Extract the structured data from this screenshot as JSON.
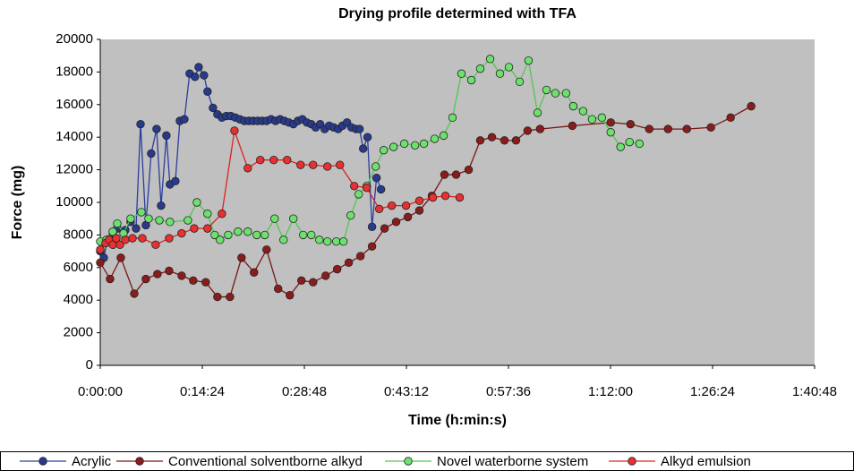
{
  "chart_data": {
    "type": "line",
    "title": "Drying profile determined with TFA",
    "x_label": "Time (h:min:s)",
    "y_label": "Force (mg)",
    "xlim": [
      0,
      6048
    ],
    "xticks": [
      {
        "value": 0,
        "label": "0:00:00"
      },
      {
        "value": 864,
        "label": "0:14:24"
      },
      {
        "value": 1728,
        "label": "0:28:48"
      },
      {
        "value": 2592,
        "label": "0:43:12"
      },
      {
        "value": 3456,
        "label": "0:57:36"
      },
      {
        "value": 4320,
        "label": "1:12:00"
      },
      {
        "value": 5184,
        "label": "1:26:24"
      },
      {
        "value": 6048,
        "label": "1:40:48"
      }
    ],
    "ylim": [
      0,
      20000
    ],
    "yticks": [
      0,
      2000,
      4000,
      6000,
      8000,
      10000,
      12000,
      14000,
      16000,
      18000,
      20000
    ],
    "grid": false,
    "legend": "bottom",
    "series": [
      {
        "name": "Acrylic",
        "color": "#2b3d9e",
        "marker_color": "#283a8c",
        "x": [
          0,
          30,
          61,
          106,
          144,
          212,
          257,
          303,
          341,
          386,
          431,
          477,
          515,
          560,
          590,
          636,
          674,
          712,
          757,
          802,
          833,
          878,
          908,
          954,
          992,
          1030,
          1067,
          1105,
          1143,
          1181,
          1219,
          1257,
          1294,
          1332,
          1370,
          1408,
          1446,
          1484,
          1522,
          1559,
          1597,
          1635,
          1673,
          1711,
          1749,
          1787,
          1824,
          1862,
          1900,
          1938,
          1976,
          2014,
          2051,
          2089,
          2127,
          2165,
          2195,
          2226,
          2263,
          2301,
          2339,
          2377
        ],
        "values": [
          7000,
          6600,
          7700,
          8000,
          8400,
          8300,
          8800,
          8400,
          14800,
          8600,
          13000,
          14500,
          9800,
          14100,
          11100,
          11300,
          15000,
          15100,
          17900,
          17700,
          18300,
          17800,
          16800,
          15800,
          15400,
          15200,
          15300,
          15300,
          15200,
          15100,
          15000,
          15000,
          15000,
          15000,
          15000,
          15000,
          15100,
          15000,
          15100,
          15000,
          14900,
          14800,
          15000,
          15100,
          14900,
          14800,
          14600,
          14800,
          14500,
          14700,
          14600,
          14500,
          14700,
          14900,
          14600,
          14500,
          14500,
          13300,
          14000,
          8500,
          11500,
          10800
        ]
      },
      {
        "name": "Conventional solventborne alkyd",
        "color": "#7a1616",
        "marker_color": "#8b1c1c",
        "x": [
          0,
          83,
          174,
          288,
          386,
          484,
          583,
          689,
          787,
          893,
          992,
          1098,
          1196,
          1302,
          1408,
          1506,
          1605,
          1703,
          1802,
          1908,
          2006,
          2104,
          2203,
          2301,
          2407,
          2505,
          2604,
          2702,
          2808,
          2914,
          3013,
          3119,
          3217,
          3316,
          3422,
          3520,
          3618,
          3724,
          3997,
          4322,
          4489,
          4648,
          4807,
          4966,
          5170,
          5337,
          5511
        ],
        "values": [
          6300,
          5300,
          6600,
          4400,
          5300,
          5600,
          5800,
          5500,
          5200,
          5100,
          4200,
          4200,
          6600,
          5700,
          7100,
          4700,
          4300,
          5200,
          5100,
          5500,
          5900,
          6300,
          6700,
          7300,
          8400,
          8800,
          9100,
          9500,
          10400,
          11700,
          11700,
          12000,
          13800,
          14000,
          13800,
          13800,
          14400,
          14500,
          14700,
          14900,
          14800,
          14500,
          14500,
          14500,
          14600,
          15200,
          15900
        ]
      },
      {
        "name": "Novel waterborne system",
        "color": "#4fc84f",
        "marker_color": "#6ee06e",
        "x": [
          0,
          53,
          106,
          144,
          197,
          257,
          348,
          409,
          500,
          590,
          742,
          818,
          908,
          969,
          1014,
          1083,
          1166,
          1249,
          1325,
          1393,
          1476,
          1552,
          1635,
          1718,
          1787,
          1855,
          1923,
          1998,
          2059,
          2120,
          2188,
          2256,
          2332,
          2400,
          2483,
          2574,
          2665,
          2740,
          2831,
          2907,
          2982,
          3058,
          3142,
          3217,
          3301,
          3384,
          3460,
          3551,
          3626,
          3702,
          3778,
          3853,
          3944,
          4005,
          4088,
          4164,
          4247,
          4322,
          4405,
          4481,
          4565
        ],
        "values": [
          7600,
          7700,
          8200,
          8700,
          8100,
          9000,
          9400,
          9000,
          8900,
          8800,
          8900,
          10000,
          9300,
          8000,
          7700,
          8000,
          8200,
          8200,
          8000,
          8000,
          9000,
          7700,
          9000,
          8000,
          8000,
          7700,
          7600,
          7600,
          7600,
          9200,
          10500,
          11000,
          12200,
          13200,
          13400,
          13600,
          13500,
          13600,
          13900,
          14100,
          15200,
          17900,
          17500,
          18200,
          18800,
          17900,
          18300,
          17400,
          18700,
          15500,
          16900,
          16700,
          16700,
          15900,
          15600,
          15100,
          15200,
          14300,
          13400,
          13700,
          13600
        ]
      },
      {
        "name": "Alkyd emulsion",
        "color": "#e02020",
        "marker_color": "#e83030",
        "x": [
          0,
          45,
          76,
          106,
          136,
          167,
          212,
          273,
          356,
          469,
          583,
          689,
          795,
          908,
          1030,
          1136,
          1249,
          1355,
          1469,
          1582,
          1696,
          1802,
          1923,
          2029,
          2150,
          2256,
          2362,
          2468,
          2589,
          2702,
          2816,
          2922,
          3043
        ],
        "values": [
          7100,
          7500,
          7700,
          7400,
          7800,
          7400,
          7700,
          7800,
          7800,
          7400,
          7800,
          8100,
          8400,
          8400,
          9300,
          14400,
          12100,
          12600,
          12600,
          12600,
          12300,
          12300,
          12200,
          12300,
          11000,
          10900,
          9600,
          9800,
          9800,
          10100,
          10300,
          10400,
          10300
        ]
      }
    ]
  }
}
